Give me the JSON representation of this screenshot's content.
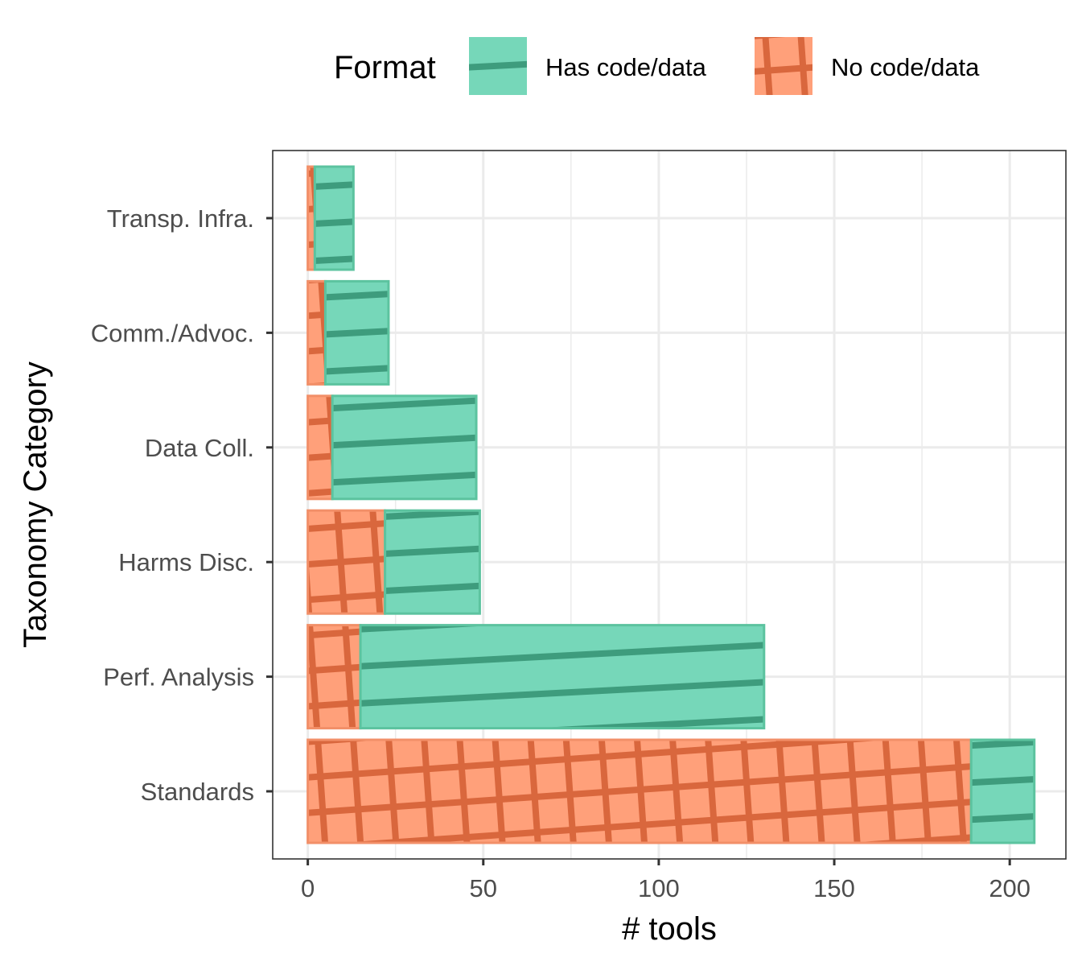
{
  "chart_data": {
    "type": "bar",
    "orientation": "horizontal",
    "stacked": true,
    "categories": [
      "Transp. Infra.",
      "Comm./Advoc.",
      "Data Coll.",
      "Harms Disc.",
      "Perf. Analysis",
      "Standards"
    ],
    "series": [
      {
        "name": "No code/data",
        "values": [
          2,
          5,
          7,
          22,
          15,
          189
        ],
        "color": "#FFA07A",
        "pattern": "crosshatch",
        "pattern_color": "#D9673D"
      },
      {
        "name": "Has code/data",
        "values": [
          11,
          18,
          41,
          27,
          115,
          18
        ],
        "color": "#76D7B9",
        "pattern": "stripe",
        "pattern_color": "#3E9C7D"
      }
    ],
    "xlabel": "# tools",
    "ylabel": "Taxonomy Category",
    "xlim": [
      -10,
      216
    ],
    "xticks": [
      0,
      50,
      100,
      150,
      200
    ],
    "grid": true,
    "legend": {
      "title": "Format",
      "position": "top",
      "entries": [
        "Has code/data",
        "No code/data"
      ]
    }
  }
}
